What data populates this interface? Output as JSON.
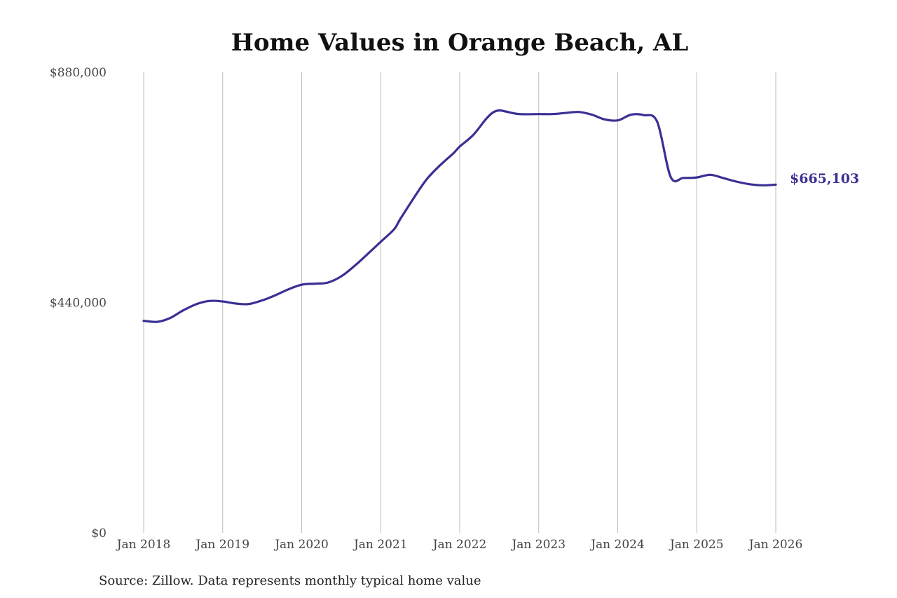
{
  "chart_data": {
    "type": "line",
    "title": "Home Values in Orange Beach, AL",
    "source": "Source: Zillow. Data represents monthly typical home value",
    "ylim": [
      0,
      880000
    ],
    "y_ticks": [
      0,
      440000,
      880000
    ],
    "y_tick_labels": [
      "$0",
      "$440,000",
      "$880,000"
    ],
    "x_range": [
      2018.0,
      2026.0
    ],
    "x_ticks": [
      2018,
      2019,
      2020,
      2021,
      2022,
      2023,
      2024,
      2025,
      2026
    ],
    "x_tick_labels": [
      "Jan 2018",
      "Jan 2019",
      "Jan 2020",
      "Jan 2021",
      "Jan 2022",
      "Jan 2023",
      "Jan 2024",
      "Jan 2025",
      "Jan 2026"
    ],
    "grid": "vertical",
    "line_color": "#3a2f94",
    "end_label": "$665,103",
    "series": [
      {
        "x": [
          2018.0,
          2018.17,
          2018.33,
          2018.5,
          2018.67,
          2018.83,
          2019.0,
          2019.17,
          2019.33,
          2019.5,
          2019.67,
          2019.83,
          2020.0,
          2020.17,
          2020.33,
          2020.5,
          2020.67,
          2020.83,
          2021.0,
          2021.17,
          2021.25,
          2021.42,
          2021.58,
          2021.75,
          2021.92,
          2022.0,
          2022.17,
          2022.33,
          2022.42,
          2022.5,
          2022.58,
          2022.75,
          2023.0,
          2023.17,
          2023.33,
          2023.5,
          2023.67,
          2023.83,
          2024.0,
          2024.17,
          2024.33,
          2024.5,
          2024.67,
          2024.83,
          2025.0,
          2025.17,
          2025.33,
          2025.5,
          2025.67,
          2025.83,
          2026.0
        ],
        "values": [
          405000,
          403000,
          410000,
          425000,
          437000,
          443000,
          442000,
          438000,
          437000,
          444000,
          454000,
          465000,
          474000,
          476000,
          478000,
          490000,
          510000,
          532000,
          556000,
          580000,
          600000,
          640000,
          675000,
          702000,
          725000,
          738000,
          760000,
          790000,
          803000,
          807000,
          805000,
          800000,
          800000,
          800000,
          802000,
          804000,
          799000,
          790000,
          788000,
          799000,
          798000,
          785000,
          680000,
          678000,
          679000,
          684000,
          678000,
          671000,
          666000,
          664000,
          665103
        ]
      }
    ]
  }
}
